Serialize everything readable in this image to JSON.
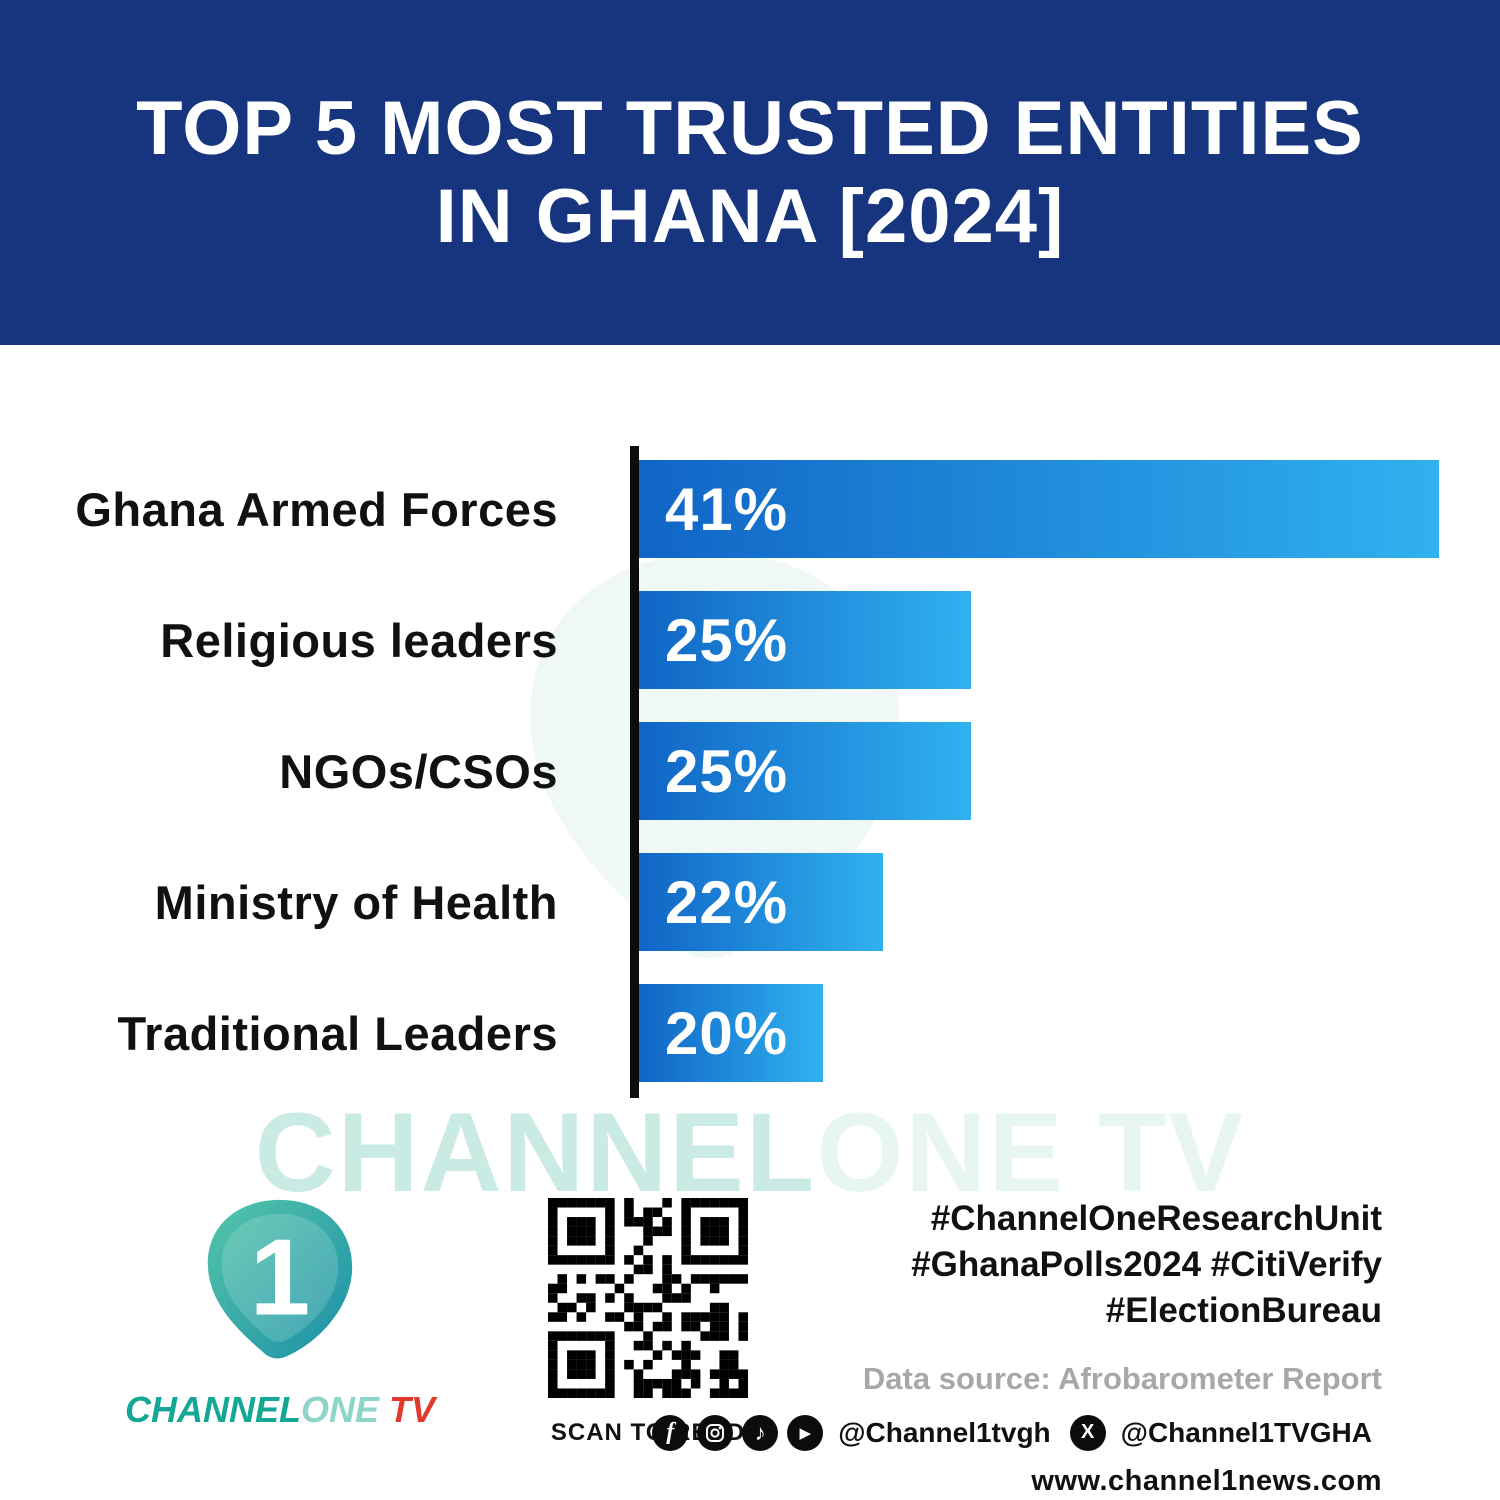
{
  "header": {
    "title_line1": "TOP 5 MOST TRUSTED ENTITIES",
    "title_line2": "IN GHANA [2024]"
  },
  "chart_data": {
    "type": "bar",
    "orientation": "horizontal",
    "title": "TOP 5 MOST TRUSTED ENTITIES IN GHANA [2024]",
    "categories": [
      "Ghana Armed Forces",
      "Religious leaders",
      "NGOs/CSOs",
      "Ministry of Health",
      "Traditional Leaders"
    ],
    "values": [
      41,
      25,
      25,
      22,
      20
    ],
    "value_labels": [
      "41%",
      "25%",
      "25%",
      "22%",
      "20%"
    ],
    "display_widths_pct_of_max": [
      100,
      41.5,
      41.5,
      30.5,
      23
    ],
    "bar_gradient": [
      "#1065c5",
      "#30b1f0"
    ],
    "axis_color": "#0c0c0c",
    "grid": false,
    "legend": false
  },
  "watermark": {
    "part1": "CHANNEL",
    "part2": "ONE TV"
  },
  "footer": {
    "logo": {
      "numeral": "1",
      "brand_channel": "CHANNEL",
      "brand_one": "ONE",
      "brand_tv": "TV"
    },
    "qr_caption": "SCAN TO READ",
    "hashtags_line1": "#ChannelOneResearchUnit",
    "hashtags_line2": "#GhanaPolls2024 #CitiVerify",
    "hashtags_line3": "#ElectionBureau",
    "data_source": "Data source: Afrobarometer Report",
    "social_handle_primary": "@Channel1tvgh",
    "social_handle_x": "@Channel1TVGHA",
    "website": "www.channel1news.com"
  },
  "colors": {
    "header_bg": "#17357f",
    "accent_teal": "#15a795",
    "tv_red": "#e0392e"
  }
}
